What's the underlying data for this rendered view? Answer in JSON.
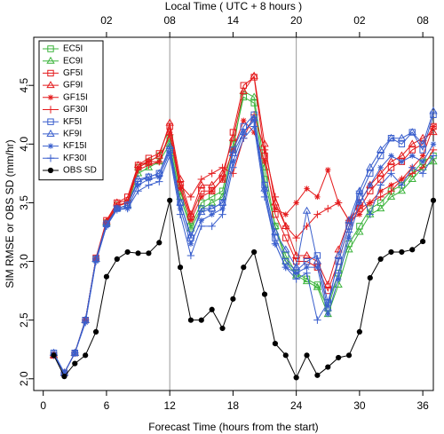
{
  "chart_data": {
    "type": "line",
    "title": "Local Time ( UTC + 8 hours )",
    "xlabel": "Forecast Time (hours from the start)",
    "ylabel": "SIM RMSE or OBS SD (mm/hr)",
    "xlim": [
      -0.9,
      37.0
    ],
    "ylim": [
      1.9,
      4.91
    ],
    "xticks": [
      0,
      6,
      12,
      18,
      24,
      30,
      36
    ],
    "yticks": [
      {
        "value": 2.0,
        "label": "2.0"
      },
      {
        "value": 2.5,
        "label": "2.5"
      },
      {
        "value": 3.0,
        "label": "3.0"
      },
      {
        "value": 3.5,
        "label": "3.5"
      },
      {
        "value": 4.0,
        "label": "4.0"
      },
      {
        "value": 4.5,
        "label": "4.5"
      }
    ],
    "top_ticks": [
      {
        "value": 6,
        "label": "02"
      },
      {
        "value": 12,
        "label": "08"
      },
      {
        "value": 18,
        "label": "14"
      },
      {
        "value": 24,
        "label": "20"
      },
      {
        "value": 30,
        "label": "02"
      },
      {
        "value": 36,
        "label": "08"
      }
    ],
    "vlines": [
      12,
      24
    ],
    "legend": "top-left",
    "x": [
      1,
      2,
      3,
      4,
      5,
      6,
      7,
      8,
      9,
      10,
      11,
      12,
      13,
      14,
      15,
      16,
      17,
      18,
      19,
      20,
      21,
      22,
      23,
      24,
      25,
      26,
      27,
      28,
      29,
      30,
      31,
      32,
      33,
      34,
      35,
      36,
      37
    ],
    "series": [
      {
        "name": "EC5I",
        "color": "#3cb43c",
        "marker": "square",
        "values": [
          2.2,
          2.05,
          2.22,
          2.5,
          3.02,
          3.33,
          3.48,
          3.5,
          3.8,
          3.85,
          3.9,
          4.05,
          3.6,
          3.3,
          3.5,
          3.55,
          3.6,
          4.0,
          4.4,
          4.35,
          3.7,
          3.3,
          3.05,
          2.9,
          2.85,
          2.8,
          2.6,
          2.9,
          3.15,
          3.3,
          3.45,
          3.5,
          3.6,
          3.65,
          3.75,
          3.85,
          3.9
        ]
      },
      {
        "name": "EC9I",
        "color": "#3cb43c",
        "marker": "triangle",
        "values": [
          2.2,
          2.05,
          2.22,
          2.5,
          3.02,
          3.33,
          3.45,
          3.48,
          3.75,
          3.8,
          3.85,
          4.0,
          3.55,
          3.28,
          3.45,
          3.5,
          3.55,
          3.95,
          4.45,
          4.4,
          3.8,
          3.3,
          3.0,
          2.88,
          2.83,
          2.78,
          2.55,
          2.8,
          3.1,
          3.25,
          3.4,
          3.45,
          3.55,
          3.6,
          3.7,
          3.8,
          3.85
        ]
      },
      {
        "name": "GF5I",
        "color": "#e41a1c",
        "marker": "square",
        "values": [
          2.2,
          2.05,
          2.22,
          2.5,
          3.03,
          3.35,
          3.5,
          3.55,
          3.82,
          3.88,
          3.92,
          4.15,
          3.65,
          3.38,
          3.6,
          3.6,
          3.7,
          4.1,
          4.5,
          4.57,
          3.9,
          3.4,
          3.2,
          3.0,
          3.0,
          2.95,
          2.75,
          3.0,
          3.3,
          3.45,
          3.6,
          3.7,
          3.8,
          3.85,
          3.95,
          4.0,
          4.15
        ]
      },
      {
        "name": "GF9I",
        "color": "#e41a1c",
        "marker": "triangle",
        "values": [
          2.2,
          2.05,
          2.22,
          2.5,
          3.02,
          3.34,
          3.5,
          3.52,
          3.82,
          3.85,
          3.9,
          4.18,
          3.7,
          3.4,
          3.65,
          3.65,
          3.75,
          4.05,
          4.45,
          4.58,
          4.0,
          3.5,
          3.3,
          3.05,
          3.05,
          3.0,
          2.8,
          3.1,
          3.35,
          3.5,
          3.65,
          3.75,
          3.85,
          3.9,
          4.0,
          4.05,
          4.1
        ]
      },
      {
        "name": "GF15I",
        "color": "#e41a1c",
        "marker": "star",
        "values": [
          2.2,
          2.05,
          2.22,
          2.5,
          3.02,
          3.33,
          3.48,
          3.5,
          3.8,
          3.85,
          3.85,
          4.1,
          3.62,
          3.35,
          3.55,
          3.6,
          3.7,
          3.95,
          4.2,
          4.1,
          3.85,
          3.45,
          3.4,
          3.5,
          3.62,
          3.55,
          3.78,
          3.5,
          3.35,
          3.4,
          3.5,
          3.6,
          3.65,
          3.7,
          3.8,
          3.9,
          4.15
        ]
      },
      {
        "name": "GF30I",
        "color": "#e41a1c",
        "marker": "plus",
        "values": [
          2.2,
          2.05,
          2.22,
          2.5,
          3.02,
          3.33,
          3.47,
          3.5,
          3.78,
          3.82,
          3.85,
          4.08,
          3.65,
          3.55,
          3.7,
          3.75,
          3.8,
          3.75,
          4.05,
          4.25,
          3.95,
          3.55,
          3.3,
          3.2,
          3.3,
          3.4,
          3.45,
          3.5,
          3.35,
          3.45,
          3.5,
          3.55,
          3.6,
          3.7,
          3.75,
          3.8,
          3.95
        ]
      },
      {
        "name": "KF5I",
        "color": "#3a5fcd",
        "marker": "square",
        "values": [
          2.22,
          2.05,
          2.22,
          2.5,
          3.02,
          3.32,
          3.45,
          3.48,
          3.68,
          3.72,
          3.75,
          3.95,
          3.5,
          3.2,
          3.45,
          3.45,
          3.5,
          3.95,
          4.15,
          4.25,
          3.65,
          3.2,
          3.0,
          2.92,
          3.0,
          3.05,
          2.65,
          3.0,
          3.3,
          3.55,
          3.75,
          3.9,
          4.05,
          4.0,
          4.1,
          3.95,
          4.25
        ]
      },
      {
        "name": "KF9I",
        "color": "#3a5fcd",
        "marker": "triangle",
        "values": [
          2.22,
          2.05,
          2.22,
          2.5,
          3.02,
          3.32,
          3.45,
          3.48,
          3.7,
          3.72,
          3.75,
          3.98,
          3.5,
          3.22,
          3.42,
          3.45,
          3.5,
          3.92,
          4.1,
          4.22,
          3.62,
          3.25,
          3.1,
          2.95,
          3.43,
          3.0,
          2.6,
          3.05,
          3.35,
          3.6,
          3.8,
          3.95,
          4.05,
          4.05,
          4.1,
          4.0,
          4.28
        ]
      },
      {
        "name": "KF15I",
        "color": "#3a5fcd",
        "marker": "star",
        "values": [
          2.2,
          2.05,
          2.22,
          2.48,
          3.0,
          3.3,
          3.45,
          3.45,
          3.65,
          3.7,
          3.72,
          3.93,
          3.45,
          3.15,
          3.35,
          3.4,
          3.45,
          3.85,
          4.1,
          4.2,
          3.6,
          3.15,
          2.95,
          2.9,
          2.95,
          2.95,
          2.55,
          2.85,
          3.2,
          3.5,
          3.65,
          3.8,
          3.9,
          3.85,
          3.9,
          3.85,
          4.0
        ]
      },
      {
        "name": "KF30I",
        "color": "#3a5fcd",
        "marker": "plus",
        "values": [
          2.2,
          2.05,
          2.22,
          2.48,
          3.0,
          3.3,
          3.44,
          3.45,
          3.6,
          3.65,
          3.68,
          3.9,
          3.4,
          3.05,
          3.3,
          3.3,
          3.4,
          3.8,
          4.05,
          4.15,
          3.55,
          3.15,
          2.95,
          2.85,
          2.9,
          2.5,
          2.65,
          2.9,
          3.25,
          3.6,
          3.4,
          3.65,
          3.75,
          3.65,
          3.8,
          3.75,
          3.9
        ]
      },
      {
        "name": "OBS SD",
        "color": "#000000",
        "marker": "circle",
        "values": [
          2.2,
          2.02,
          2.13,
          2.2,
          2.4,
          2.87,
          3.02,
          3.08,
          3.07,
          3.07,
          3.16,
          3.52,
          2.95,
          2.5,
          2.5,
          2.59,
          2.43,
          2.68,
          2.95,
          3.08,
          2.72,
          2.3,
          2.2,
          2.01,
          2.2,
          2.03,
          2.1,
          2.18,
          2.2,
          2.4,
          2.86,
          3.02,
          3.08,
          3.08,
          3.1,
          3.17,
          3.52
        ]
      }
    ]
  }
}
